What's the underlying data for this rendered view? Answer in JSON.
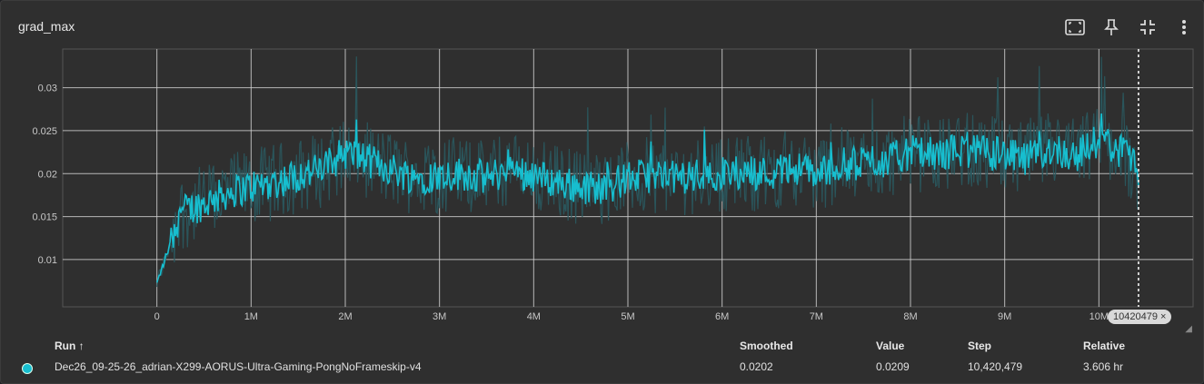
{
  "title": "grad_max",
  "toolbar": {
    "fit_icon": "fit-domain-icon",
    "pin_icon": "pin-icon",
    "collapse_icon": "collapse-icon",
    "more_icon": "more-vert-icon"
  },
  "colors": {
    "series_smoothed": "#17becf",
    "series_raw": "#2a5a60",
    "grid": "#d0d0d0",
    "background": "#2f2f2f"
  },
  "chart_data": {
    "type": "line",
    "title": "grad_max",
    "xlabel": "",
    "ylabel": "",
    "xlim": [
      -1000000,
      11000000
    ],
    "ylim": [
      0.0045,
      0.0345
    ],
    "x_ticks": [
      0,
      1000000,
      2000000,
      3000000,
      4000000,
      5000000,
      6000000,
      7000000,
      8000000,
      9000000,
      10000000
    ],
    "x_tick_labels": [
      "0",
      "1M",
      "2M",
      "3M",
      "4M",
      "5M",
      "6M",
      "7M",
      "8M",
      "9M",
      "10M"
    ],
    "y_ticks": [
      0.01,
      0.015,
      0.02,
      0.025,
      0.03
    ],
    "y_tick_labels": [
      "0.01",
      "0.015",
      "0.02",
      "0.025",
      "0.03"
    ],
    "grid": true,
    "hover_step": 10420479,
    "hover_step_label": "10420479",
    "series": [
      {
        "name": "Dec26_09-25-26_adrian-X299-AORUS-Ultra-Gaming-PongNoFrameskip-v4",
        "x": [
          0,
          250000,
          500000,
          750000,
          1000000,
          1250000,
          1500000,
          1750000,
          2000000,
          2250000,
          2500000,
          2750000,
          3000000,
          3250000,
          3500000,
          3750000,
          4000000,
          4250000,
          4500000,
          4750000,
          5000000,
          5250000,
          5500000,
          5750000,
          6000000,
          6250000,
          6500000,
          6750000,
          7000000,
          7250000,
          7500000,
          7750000,
          8000000,
          8250000,
          8500000,
          8750000,
          9000000,
          9250000,
          9500000,
          9750000,
          10000000,
          10250000,
          10420479
        ],
        "values": [
          0.0072,
          0.0155,
          0.0165,
          0.0178,
          0.0185,
          0.019,
          0.0198,
          0.0205,
          0.0225,
          0.0215,
          0.0205,
          0.0195,
          0.0198,
          0.02,
          0.0195,
          0.0205,
          0.0198,
          0.019,
          0.0185,
          0.0183,
          0.0195,
          0.0198,
          0.0195,
          0.0198,
          0.02,
          0.0202,
          0.02,
          0.0208,
          0.02,
          0.021,
          0.0212,
          0.0215,
          0.0225,
          0.022,
          0.0228,
          0.0225,
          0.0222,
          0.0215,
          0.023,
          0.022,
          0.024,
          0.0225,
          0.0202
        ]
      }
    ]
  },
  "table": {
    "headers": {
      "run": "Run ↑",
      "smoothed": "Smoothed",
      "value": "Value",
      "step": "Step",
      "relative": "Relative"
    },
    "rows": [
      {
        "run": "Dec26_09-25-26_adrian-X299-AORUS-Ultra-Gaming-PongNoFrameskip-v4",
        "smoothed": "0.0202",
        "value": "0.0209",
        "step": "10,420,479",
        "relative": "3.606 hr"
      }
    ]
  }
}
